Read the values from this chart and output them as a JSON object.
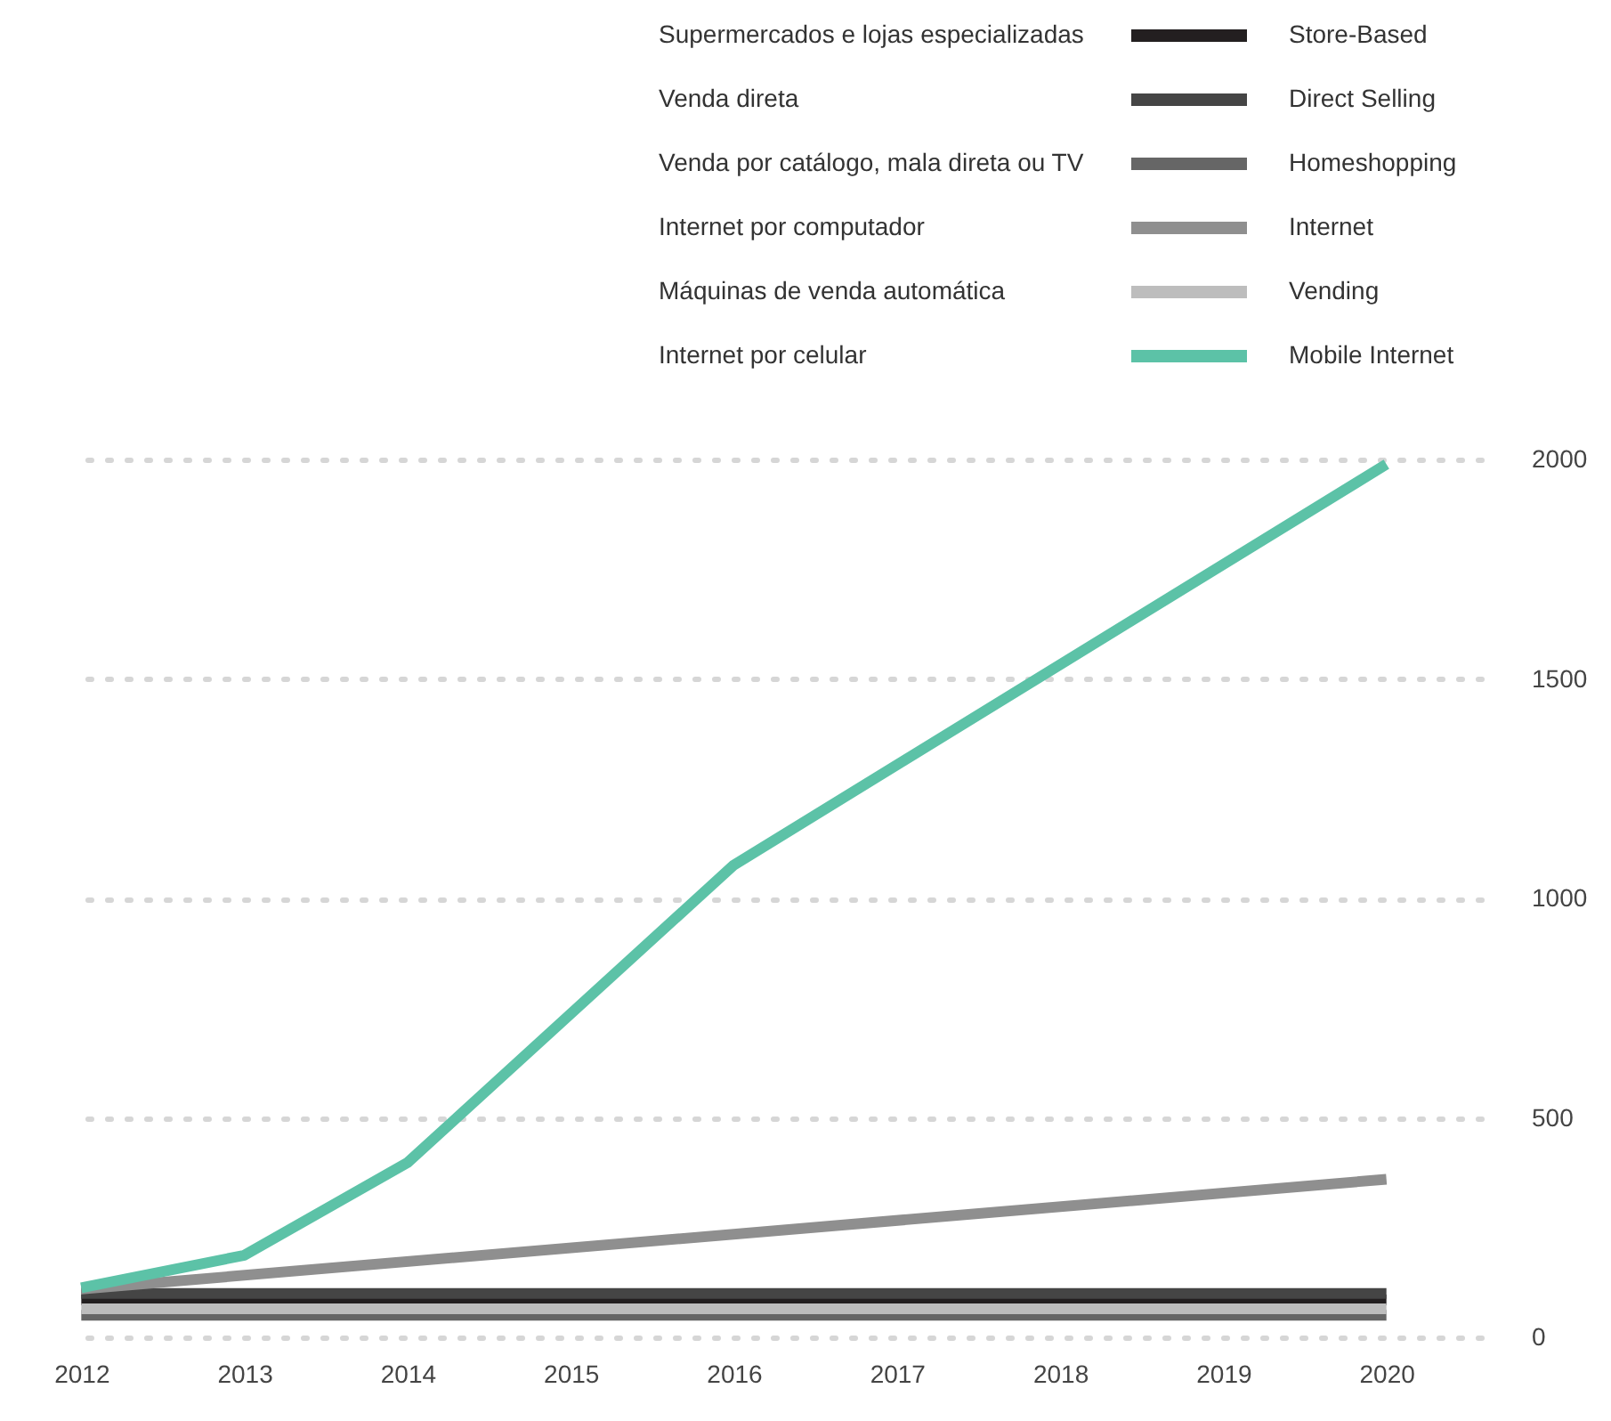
{
  "chart_data": {
    "type": "line",
    "x": [
      2012,
      2020
    ],
    "xlim": [
      2011.96,
      2020.58
    ],
    "xticks": [
      2012,
      2013,
      2014,
      2015,
      2016,
      2017,
      2018,
      2019,
      2020
    ],
    "ylim": [
      0,
      2000
    ],
    "yticks": [
      0,
      500,
      1000,
      1500,
      2000
    ],
    "grid": "y",
    "legend": "top",
    "annotations": [
      "Supermercados e lojas especializadas",
      "Venda direta",
      "Venda por catálogo, mala direta ou TV",
      "Internet por computador",
      "Máquinas de venda automática",
      "Internet por celular"
    ],
    "series": [
      {
        "name": "Store-Based",
        "color": "#231f20",
        "values": [
          85,
          85
        ]
      },
      {
        "name": "Direct Selling",
        "color": "#454545",
        "values": [
          100,
          100
        ]
      },
      {
        "name": "Homeshopping",
        "color": "#666666",
        "values": [
          50,
          50
        ]
      },
      {
        "name": "Internet",
        "color": "#8f8f8f",
        "values": [
          110,
          360
        ]
      },
      {
        "name": "Vending",
        "color": "#bdbdbd",
        "values": [
          65,
          65
        ]
      },
      {
        "name": "Mobile Internet",
        "color": "#5cc2a7",
        "x": [
          2012,
          2013,
          2014,
          2016,
          2020
        ],
        "values": [
          113,
          187,
          398,
          1076,
          1989
        ]
      }
    ]
  }
}
